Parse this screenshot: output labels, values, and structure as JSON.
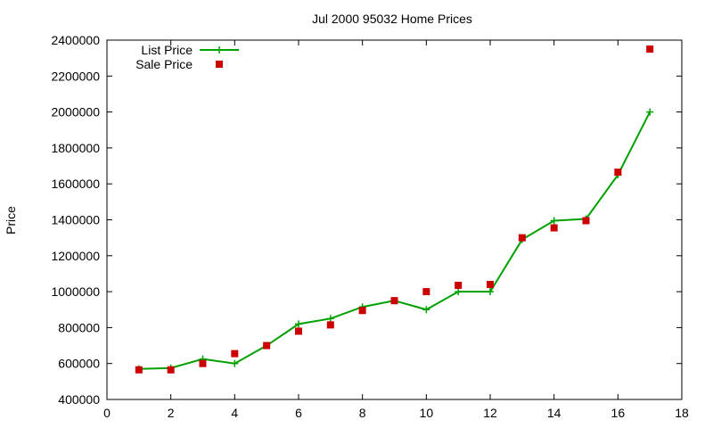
{
  "chart_data": {
    "type": "line",
    "title": "Jul 2000 95032 Home Prices",
    "xlabel": "",
    "ylabel": "Price",
    "xlim": [
      0,
      18
    ],
    "ylim": [
      400000,
      2400000
    ],
    "xticks": [
      0,
      2,
      4,
      6,
      8,
      10,
      12,
      14,
      16,
      18
    ],
    "yticks": [
      400000,
      600000,
      800000,
      1000000,
      1200000,
      1400000,
      1600000,
      1800000,
      2000000,
      2200000,
      2400000
    ],
    "grid": false,
    "legend": "top-left",
    "colors": {
      "list": "#00a000",
      "sale": "#cc0000"
    },
    "series": [
      {
        "name": "List Price",
        "style": "line-points",
        "x": [
          1,
          2,
          3,
          4,
          5,
          6,
          7,
          8,
          9,
          10,
          11,
          12,
          13,
          14,
          15,
          16,
          17
        ],
        "y": [
          570000,
          575000,
          625000,
          600000,
          700000,
          820000,
          850000,
          915000,
          950000,
          900000,
          1000000,
          1000000,
          1290000,
          1395000,
          1405000,
          1650000,
          2000000
        ]
      },
      {
        "name": "Sale Price",
        "style": "points",
        "x": [
          1,
          2,
          3,
          4,
          5,
          6,
          7,
          8,
          9,
          10,
          11,
          12,
          13,
          14,
          15,
          16,
          17
        ],
        "y": [
          565000,
          565000,
          600000,
          655000,
          700000,
          780000,
          815000,
          895000,
          950000,
          1000000,
          1035000,
          1040000,
          1300000,
          1355000,
          1395000,
          1665000,
          2350000
        ]
      }
    ]
  }
}
